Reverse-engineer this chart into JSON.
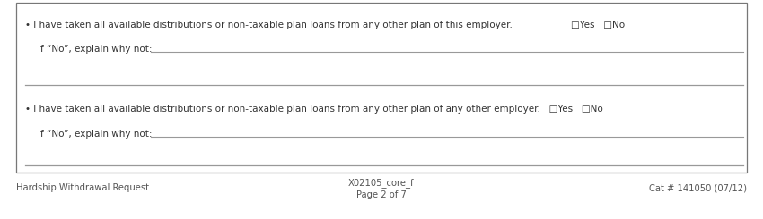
{
  "bg_color": "#ffffff",
  "border_color": "#777777",
  "text_color": "#333333",
  "light_line_color": "#999999",
  "footer_color": "#555555",
  "bullet1_text": "• I have taken all available distributions or non-taxable plan loans from any other plan of this employer.",
  "yes_no_1": "□Yes   □No",
  "ifno1_label": "If “No”, explain why not:",
  "bullet2_text": "• I have taken all available distributions or non-taxable plan loans from any other plan of any other employer.   □Yes   □No",
  "ifno2_label": "If “No”, explain why not:",
  "footer_left": "Hardship Withdrawal Request",
  "footer_center_line1": "X02105_core_f",
  "footer_center_line2": "Page 2 of 7",
  "footer_right": "Cat # 141050 (07/12)"
}
